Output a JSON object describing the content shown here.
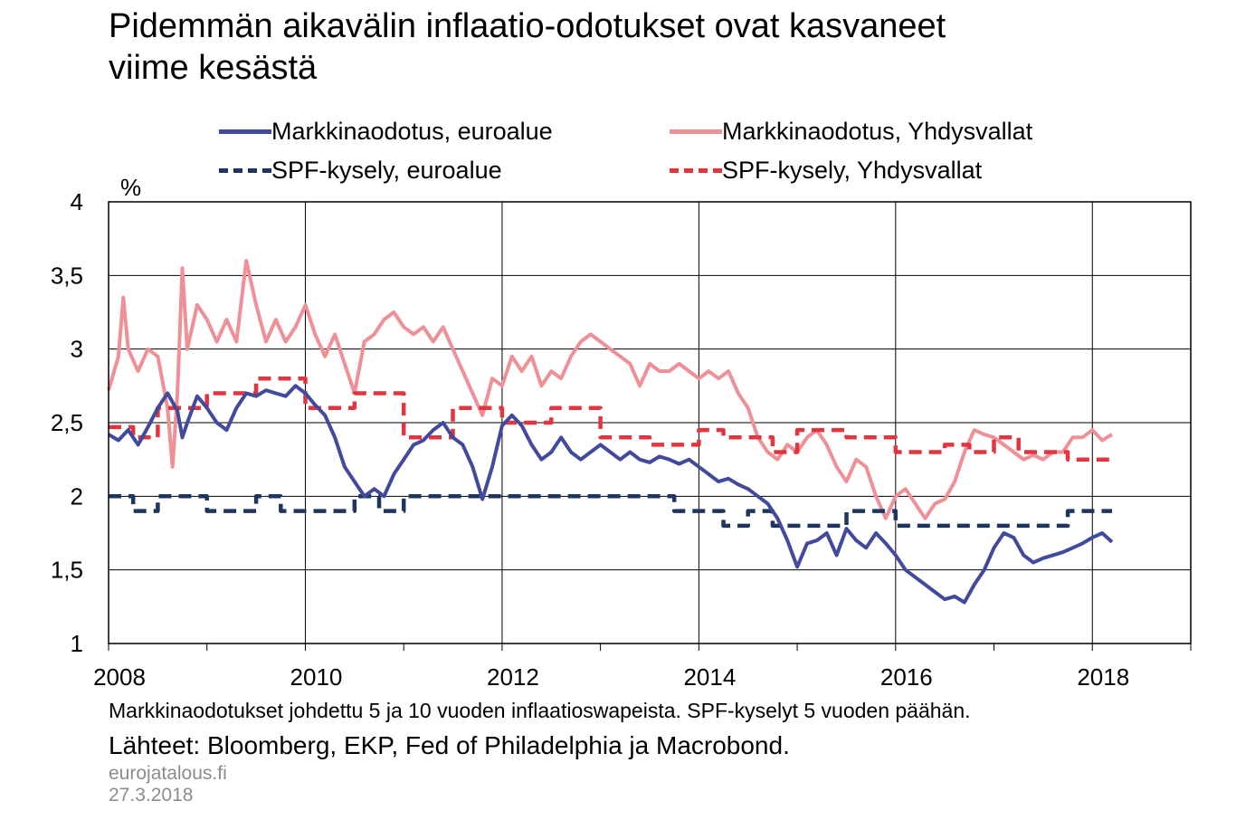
{
  "title_line1": "Pidemmän aikavälin inflaatio-odotukset ovat kasvaneet",
  "title_line2": "viime kesästä",
  "notes": "Markkinaodotukset johdettu 5 ja 10 vuoden inflaatioswapeista. SPF-kyselyt 5 vuoden päähän.",
  "sources": "Lähteet: Bloomberg, EKP, Fed of Philadelphia ja Macrobond.",
  "site": "eurojatalous.fi",
  "date": "27.3.2018",
  "colors": {
    "ea_market": "#414a9c",
    "us_market": "#ef8f96",
    "ea_spf": "#1e3560",
    "us_spf": "#e3343f"
  },
  "chart_data": {
    "type": "line",
    "title": "Pidemmän aikavälin inflaatio-odotukset ovat kasvaneet viime kesästä",
    "ylabel": "%",
    "xlabel": "",
    "ylim": [
      1,
      4
    ],
    "xlim": [
      2008.0,
      2019.0
    ],
    "yticks": [
      "1",
      "1,5",
      "2",
      "2,5",
      "3",
      "3,5",
      "4"
    ],
    "ytick_values": [
      1,
      1.5,
      2,
      2.5,
      3,
      3.5,
      4
    ],
    "xticks": [
      "2008",
      "2010",
      "2012",
      "2014",
      "2016",
      "2018"
    ],
    "xtick_values": [
      2008,
      2010,
      2012,
      2014,
      2016,
      2018
    ],
    "grid": true,
    "legend_position": "top",
    "series": [
      {
        "name": "Markkinaodotus, euroalue",
        "style": "solid",
        "x": [
          2008.0,
          2008.1,
          2008.2,
          2008.3,
          2008.4,
          2008.5,
          2008.6,
          2008.7,
          2008.75,
          2008.8,
          2008.9,
          2009.0,
          2009.1,
          2009.2,
          2009.3,
          2009.4,
          2009.5,
          2009.6,
          2009.7,
          2009.8,
          2009.9,
          2010.0,
          2010.1,
          2010.2,
          2010.3,
          2010.4,
          2010.5,
          2010.6,
          2010.7,
          2010.8,
          2010.9,
          2011.0,
          2011.1,
          2011.2,
          2011.3,
          2011.4,
          2011.5,
          2011.6,
          2011.7,
          2011.8,
          2011.9,
          2012.0,
          2012.1,
          2012.2,
          2012.3,
          2012.4,
          2012.5,
          2012.6,
          2012.7,
          2012.8,
          2012.9,
          2013.0,
          2013.1,
          2013.2,
          2013.3,
          2013.4,
          2013.5,
          2013.6,
          2013.7,
          2013.8,
          2013.9,
          2014.0,
          2014.1,
          2014.2,
          2014.3,
          2014.4,
          2014.5,
          2014.6,
          2014.7,
          2014.8,
          2014.9,
          2015.0,
          2015.1,
          2015.2,
          2015.3,
          2015.4,
          2015.5,
          2015.6,
          2015.7,
          2015.8,
          2015.9,
          2016.0,
          2016.1,
          2016.2,
          2016.3,
          2016.4,
          2016.5,
          2016.6,
          2016.7,
          2016.8,
          2016.9,
          2017.0,
          2017.1,
          2017.2,
          2017.3,
          2017.4,
          2017.5,
          2017.6,
          2017.7,
          2017.8,
          2017.9,
          2018.0,
          2018.1,
          2018.2
        ],
        "values": [
          2.42,
          2.38,
          2.45,
          2.35,
          2.47,
          2.6,
          2.7,
          2.58,
          2.4,
          2.5,
          2.68,
          2.6,
          2.5,
          2.45,
          2.6,
          2.7,
          2.68,
          2.72,
          2.7,
          2.68,
          2.75,
          2.7,
          2.62,
          2.55,
          2.4,
          2.2,
          2.1,
          2.0,
          2.05,
          2.0,
          2.15,
          2.25,
          2.35,
          2.38,
          2.45,
          2.5,
          2.4,
          2.35,
          2.2,
          1.98,
          2.2,
          2.48,
          2.55,
          2.48,
          2.35,
          2.25,
          2.3,
          2.4,
          2.3,
          2.25,
          2.3,
          2.35,
          2.3,
          2.25,
          2.3,
          2.25,
          2.23,
          2.27,
          2.25,
          2.22,
          2.25,
          2.2,
          2.15,
          2.1,
          2.12,
          2.08,
          2.05,
          2.0,
          1.95,
          1.85,
          1.7,
          1.52,
          1.68,
          1.7,
          1.75,
          1.6,
          1.78,
          1.7,
          1.65,
          1.75,
          1.68,
          1.6,
          1.5,
          1.45,
          1.4,
          1.35,
          1.3,
          1.32,
          1.28,
          1.4,
          1.5,
          1.65,
          1.75,
          1.72,
          1.6,
          1.55,
          1.58,
          1.6,
          1.62,
          1.65,
          1.68,
          1.72,
          1.75,
          1.69
        ]
      },
      {
        "name": "Markkinaodotus, Yhdysvallat",
        "style": "solid",
        "x": [
          2008.0,
          2008.1,
          2008.15,
          2008.2,
          2008.3,
          2008.4,
          2008.5,
          2008.6,
          2008.65,
          2008.7,
          2008.75,
          2008.8,
          2008.9,
          2009.0,
          2009.1,
          2009.2,
          2009.3,
          2009.4,
          2009.5,
          2009.6,
          2009.7,
          2009.8,
          2009.9,
          2010.0,
          2010.1,
          2010.2,
          2010.3,
          2010.4,
          2010.5,
          2010.6,
          2010.7,
          2010.8,
          2010.9,
          2011.0,
          2011.1,
          2011.2,
          2011.3,
          2011.4,
          2011.5,
          2011.6,
          2011.7,
          2011.8,
          2011.9,
          2012.0,
          2012.1,
          2012.2,
          2012.3,
          2012.4,
          2012.5,
          2012.6,
          2012.7,
          2012.8,
          2012.9,
          2013.0,
          2013.1,
          2013.2,
          2013.3,
          2013.4,
          2013.5,
          2013.6,
          2013.7,
          2013.8,
          2013.9,
          2014.0,
          2014.1,
          2014.2,
          2014.3,
          2014.4,
          2014.5,
          2014.6,
          2014.7,
          2014.8,
          2014.9,
          2015.0,
          2015.1,
          2015.2,
          2015.3,
          2015.4,
          2015.5,
          2015.6,
          2015.7,
          2015.8,
          2015.9,
          2016.0,
          2016.1,
          2016.2,
          2016.3,
          2016.4,
          2016.5,
          2016.6,
          2016.7,
          2016.8,
          2016.9,
          2017.0,
          2017.1,
          2017.2,
          2017.3,
          2017.4,
          2017.5,
          2017.6,
          2017.7,
          2017.8,
          2017.9,
          2018.0,
          2018.1,
          2018.2
        ],
        "values": [
          2.72,
          2.95,
          3.35,
          3.0,
          2.85,
          3.0,
          2.95,
          2.6,
          2.2,
          2.7,
          3.55,
          3.0,
          3.3,
          3.2,
          3.05,
          3.2,
          3.05,
          3.6,
          3.3,
          3.05,
          3.2,
          3.05,
          3.15,
          3.3,
          3.1,
          2.95,
          3.1,
          2.9,
          2.7,
          3.05,
          3.1,
          3.2,
          3.25,
          3.15,
          3.1,
          3.15,
          3.05,
          3.15,
          3.0,
          2.85,
          2.7,
          2.55,
          2.8,
          2.75,
          2.95,
          2.85,
          2.95,
          2.75,
          2.85,
          2.8,
          2.95,
          3.05,
          3.1,
          3.05,
          3.0,
          2.95,
          2.9,
          2.75,
          2.9,
          2.85,
          2.85,
          2.9,
          2.85,
          2.8,
          2.85,
          2.8,
          2.85,
          2.7,
          2.6,
          2.4,
          2.3,
          2.25,
          2.35,
          2.3,
          2.4,
          2.45,
          2.35,
          2.2,
          2.1,
          2.25,
          2.2,
          2.0,
          1.85,
          2.0,
          2.05,
          1.95,
          1.85,
          1.95,
          1.98,
          2.1,
          2.3,
          2.45,
          2.42,
          2.4,
          2.35,
          2.3,
          2.25,
          2.28,
          2.25,
          2.3,
          2.3,
          2.4,
          2.4,
          2.45,
          2.38,
          2.42
        ]
      },
      {
        "name": "SPF-kysely, euroalue",
        "style": "dashed",
        "x": [
          2008.0,
          2008.25,
          2008.25,
          2008.5,
          2008.5,
          2009.0,
          2009.0,
          2009.5,
          2009.5,
          2009.75,
          2009.75,
          2010.5,
          2010.5,
          2010.75,
          2010.75,
          2011.0,
          2011.0,
          2013.75,
          2013.75,
          2014.25,
          2014.25,
          2014.5,
          2014.5,
          2014.75,
          2014.75,
          2015.5,
          2015.5,
          2016.0,
          2016.0,
          2017.75,
          2017.75,
          2018.2
        ],
        "values": [
          2.0,
          2.0,
          1.9,
          1.9,
          2.0,
          2.0,
          1.9,
          1.9,
          2.0,
          2.0,
          1.9,
          1.9,
          2.0,
          2.0,
          1.9,
          1.9,
          2.0,
          2.0,
          1.9,
          1.9,
          1.8,
          1.8,
          1.9,
          1.9,
          1.8,
          1.8,
          1.9,
          1.9,
          1.8,
          1.8,
          1.9,
          1.9
        ]
      },
      {
        "name": "SPF-kysely, Yhdysvallat",
        "style": "dashed",
        "x": [
          2008.0,
          2008.25,
          2008.25,
          2008.5,
          2008.5,
          2009.0,
          2009.0,
          2009.5,
          2009.5,
          2010.0,
          2010.0,
          2010.5,
          2010.5,
          2011.0,
          2011.0,
          2011.5,
          2011.5,
          2012.0,
          2012.0,
          2012.5,
          2012.5,
          2013.0,
          2013.0,
          2013.5,
          2013.5,
          2014.0,
          2014.0,
          2014.25,
          2014.25,
          2014.75,
          2014.75,
          2015.0,
          2015.0,
          2015.5,
          2015.5,
          2016.0,
          2016.0,
          2016.5,
          2016.5,
          2016.75,
          2016.75,
          2017.0,
          2017.0,
          2017.25,
          2017.25,
          2017.75,
          2017.75,
          2018.2
        ],
        "values": [
          2.47,
          2.47,
          2.4,
          2.4,
          2.6,
          2.6,
          2.7,
          2.7,
          2.8,
          2.8,
          2.6,
          2.6,
          2.7,
          2.7,
          2.4,
          2.4,
          2.6,
          2.6,
          2.5,
          2.5,
          2.6,
          2.6,
          2.4,
          2.4,
          2.35,
          2.35,
          2.45,
          2.45,
          2.4,
          2.4,
          2.3,
          2.3,
          2.45,
          2.45,
          2.4,
          2.4,
          2.3,
          2.3,
          2.35,
          2.35,
          2.3,
          2.3,
          2.4,
          2.4,
          2.3,
          2.3,
          2.25,
          2.25
        ]
      }
    ]
  }
}
